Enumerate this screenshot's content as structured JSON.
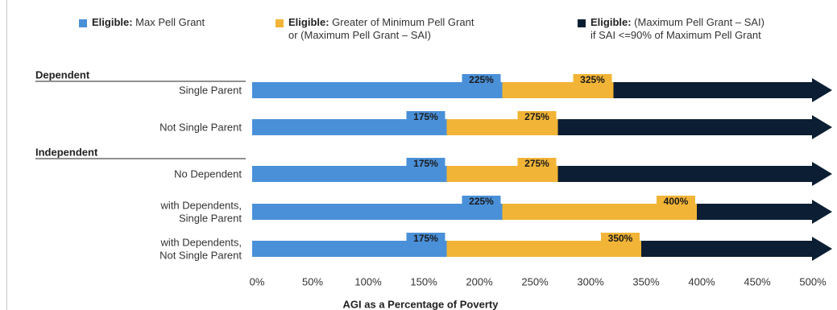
{
  "chart_data": {
    "type": "bar",
    "orientation": "horizontal",
    "stacked": true,
    "title": "",
    "xlabel": "AGI as a Percentage of Poverty",
    "ylabel": "",
    "xlim": [
      0,
      500
    ],
    "x_ticks": [
      "0%",
      "50%",
      "100%",
      "150%",
      "200%",
      "250%",
      "300%",
      "350%",
      "400%",
      "450%",
      "500%"
    ],
    "grid": false,
    "legend_position": "top",
    "legend": [
      {
        "bold": "Eligible:",
        "text": " Max Pell Grant",
        "color": "#4a90d9"
      },
      {
        "bold": "Eligible:",
        "text": " Greater of Minimum Pell Grant",
        "text2": "or (Maximum Pell Grant – SAI)",
        "color": "#f2b436"
      },
      {
        "bold": "Eligible:",
        "text": " (Maximum Pell Grant – SAI)",
        "text2": "if SAI <=90% of Maximum Pell Grant",
        "color": "#0c1e33"
      }
    ],
    "groups": [
      {
        "name": "Dependent",
        "categories": [
          {
            "label": [
              "Single Parent"
            ],
            "max_pell": 225,
            "min_pell": 325,
            "label_max": "225%",
            "label_min": "325%"
          },
          {
            "label": [
              "Not Single Parent"
            ],
            "max_pell": 175,
            "min_pell": 275,
            "label_max": "175%",
            "label_min": "275%"
          }
        ]
      },
      {
        "name": "Independent",
        "categories": [
          {
            "label": [
              "No Dependent"
            ],
            "max_pell": 175,
            "min_pell": 275,
            "label_max": "175%",
            "label_min": "275%"
          },
          {
            "label": [
              "with Dependents,",
              "Single Parent"
            ],
            "max_pell": 225,
            "min_pell": 400,
            "label_max": "225%",
            "label_min": "400%"
          },
          {
            "label": [
              "with Dependents,",
              "Not Single Parent"
            ],
            "max_pell": 175,
            "min_pell": 350,
            "label_max": "175%",
            "label_min": "350%"
          }
        ]
      }
    ]
  }
}
